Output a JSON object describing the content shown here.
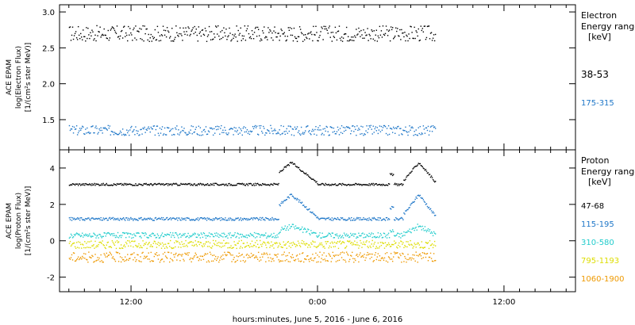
{
  "chart_data": {
    "type": "scatter",
    "xlabel": "hours:minutes, June  5, 2016 - June  6, 2016",
    "x_tick_labels": [
      {
        "hour": 12,
        "label": "12:00"
      },
      {
        "hour": 24,
        "label": "0:00"
      },
      {
        "hour": 36,
        "label": "12:00"
      }
    ],
    "x_range_hours": [
      7.4,
      40.6
    ],
    "data_end_hour": 31.6,
    "panels": [
      {
        "id": "electron",
        "ylabel_lines": [
          "ACE EPAM",
          "log(Electron Flux)",
          "[1/(cm²s ster MeV)]"
        ],
        "ylim": [
          1.08,
          3.1
        ],
        "y_tick_labels": [
          "1.5",
          "2.0",
          "2.5",
          "3.0"
        ],
        "y_tick_values": [
          1.5,
          2.0,
          2.5,
          3.0
        ],
        "legend_title": [
          "Electron",
          "Energy ranges",
          "[keV]"
        ],
        "series": [
          {
            "name": "38-53",
            "color": "#000000",
            "base": 2.7,
            "noise": 0.11
          },
          {
            "name": "175-315",
            "color": "#1f77c8",
            "base": 1.35,
            "noise": 0.07
          }
        ]
      },
      {
        "id": "proton",
        "ylabel_lines": [
          "ACE EPAM",
          "log(Proton Flux)",
          "[1/(cm²s ster MeV)]"
        ],
        "ylim": [
          -2.8,
          5.0
        ],
        "y_tick_labels": [
          "-2",
          "0",
          "2",
          "4"
        ],
        "y_tick_values": [
          -2,
          0,
          2,
          4
        ],
        "legend_title": [
          "Proton",
          "Energy ranges",
          "[keV]"
        ],
        "series": [
          {
            "name": "47-68",
            "color": "#000000",
            "base": 3.1,
            "noise": 0.06,
            "enh": 1.2
          },
          {
            "name": "115-195",
            "color": "#1f77c8",
            "base": 1.2,
            "noise": 0.08,
            "enh": 1.35
          },
          {
            "name": "310-580",
            "color": "#22cccc",
            "base": 0.3,
            "noise": 0.15,
            "enh": 0.5
          },
          {
            "name": "795-1193",
            "color": "#dddd00",
            "base": -0.2,
            "noise": 0.22,
            "enh": 0.0
          },
          {
            "name": "1060-1900",
            "color": "#ee9900",
            "base": -0.9,
            "noise": 0.28,
            "enh": 0.0
          }
        ]
      }
    ]
  }
}
